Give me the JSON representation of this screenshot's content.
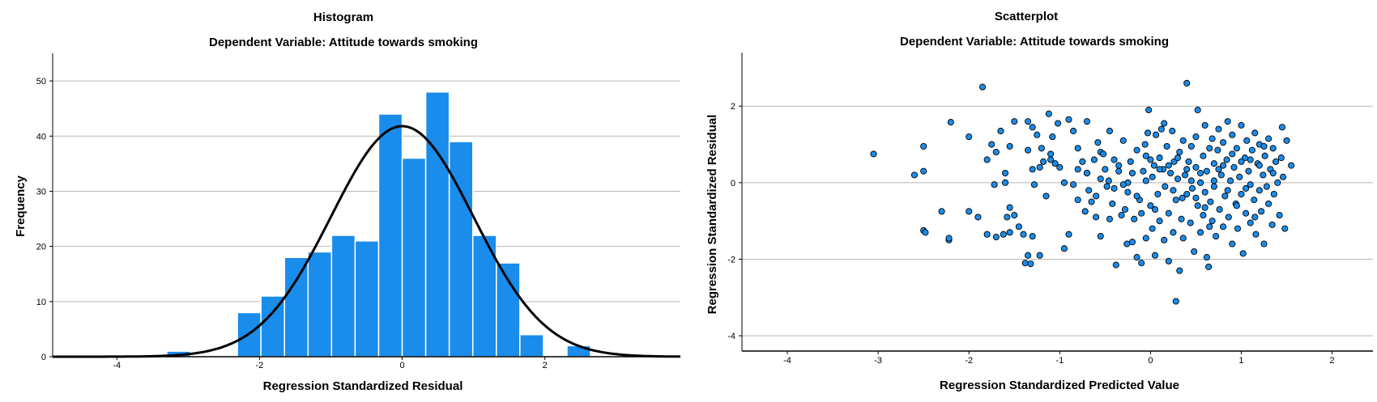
{
  "chart_data": [
    {
      "type": "bar",
      "title": "Histogram",
      "subtitle": "Dependent Variable: Attitude towards smoking",
      "xlabel": "Regression Standardized Residual",
      "ylabel": "Frequency",
      "xlim": [
        -4.9,
        3.9
      ],
      "ylim": [
        0,
        55
      ],
      "x_ticks": [
        "-4",
        "-2",
        "0",
        "2"
      ],
      "y_ticks": [
        "0",
        "10",
        "20",
        "30",
        "40",
        "50"
      ],
      "grid": "horizontal",
      "bar_color": "#1a8ceb",
      "bin_width": 0.33,
      "bins": [
        {
          "start": -3.3,
          "value": 1
        },
        {
          "start": -2.31,
          "value": 8
        },
        {
          "start": -1.98,
          "value": 11
        },
        {
          "start": -1.65,
          "value": 18
        },
        {
          "start": -1.32,
          "value": 19
        },
        {
          "start": -0.99,
          "value": 22
        },
        {
          "start": -0.66,
          "value": 21
        },
        {
          "start": -0.33,
          "value": 44
        },
        {
          "start": 0.0,
          "value": 36
        },
        {
          "start": 0.33,
          "value": 48
        },
        {
          "start": 0.66,
          "value": 39
        },
        {
          "start": 0.99,
          "value": 22
        },
        {
          "start": 1.32,
          "value": 17
        },
        {
          "start": 1.65,
          "value": 4
        },
        {
          "start": 2.31,
          "value": 2
        }
      ],
      "normal_curve": {
        "mean": 0,
        "sd": 1,
        "peak": 41.8,
        "color": "#000000"
      }
    },
    {
      "type": "scatter",
      "title": "Scatterplot",
      "subtitle": "Dependent Variable: Attitude towards smoking",
      "xlabel": "Regression Standardized Predicted Value",
      "ylabel": "Regression Standardized Residual",
      "xlim": [
        -4.5,
        2.45
      ],
      "ylim": [
        -4.4,
        3.4
      ],
      "x_ticks": [
        "-4",
        "-3",
        "-2",
        "-1",
        "0",
        "1",
        "2"
      ],
      "y_ticks": [
        "-4",
        "-2",
        "0",
        "2"
      ],
      "grid": "horizontal",
      "point_color": "#1a8ceb",
      "points": [
        [
          -3.05,
          0.75
        ],
        [
          -2.6,
          0.2
        ],
        [
          -2.5,
          0.95
        ],
        [
          -2.5,
          0.3
        ],
        [
          -2.5,
          -1.25
        ],
        [
          -2.48,
          -1.3
        ],
        [
          -2.3,
          -0.75
        ],
        [
          -2.22,
          -1.5
        ],
        [
          -2.22,
          -1.45
        ],
        [
          -2.2,
          1.58
        ],
        [
          -2.0,
          1.2
        ],
        [
          -2.0,
          -0.75
        ],
        [
          -1.9,
          -0.9
        ],
        [
          -1.85,
          2.5
        ],
        [
          -1.8,
          0.6
        ],
        [
          -1.8,
          -1.35
        ],
        [
          -1.7,
          -1.42
        ],
        [
          -1.75,
          1.0
        ],
        [
          -1.7,
          0.8
        ],
        [
          -1.72,
          -0.05
        ],
        [
          -1.65,
          1.35
        ],
        [
          -1.62,
          -1.35
        ],
        [
          -1.6,
          0.0
        ],
        [
          -1.6,
          0.25
        ],
        [
          -1.58,
          -0.9
        ],
        [
          -1.55,
          0.95
        ],
        [
          -1.55,
          -0.65
        ],
        [
          -1.55,
          -1.3
        ],
        [
          -1.5,
          -0.85
        ],
        [
          -1.5,
          1.6
        ],
        [
          -1.45,
          -1.15
        ],
        [
          -1.4,
          -1.35
        ],
        [
          -1.38,
          -2.1
        ],
        [
          -1.35,
          -1.9
        ],
        [
          -1.32,
          -2.12
        ],
        [
          -1.3,
          -1.4
        ],
        [
          -1.35,
          1.6
        ],
        [
          -1.35,
          0.85
        ],
        [
          -1.3,
          1.45
        ],
        [
          -1.3,
          0.35
        ],
        [
          -1.28,
          -0.05
        ],
        [
          -1.25,
          1.25
        ],
        [
          -1.22,
          -1.9
        ],
        [
          -1.22,
          0.4
        ],
        [
          -1.2,
          0.9
        ],
        [
          -1.18,
          0.55
        ],
        [
          -1.15,
          -0.35
        ],
        [
          -1.12,
          1.8
        ],
        [
          -1.1,
          0.6
        ],
        [
          -1.08,
          1.2
        ],
        [
          -1.05,
          0.5
        ],
        [
          -1.02,
          1.55
        ],
        [
          -1.0,
          0.4
        ],
        [
          -0.95,
          0.0
        ],
        [
          -0.95,
          -1.72
        ],
        [
          -0.9,
          1.65
        ],
        [
          -0.85,
          -0.05
        ],
        [
          -0.85,
          1.35
        ],
        [
          -0.8,
          -0.45
        ],
        [
          -0.8,
          0.9
        ],
        [
          -0.75,
          0.55
        ],
        [
          -0.72,
          -0.75
        ],
        [
          -0.7,
          1.6
        ],
        [
          -0.7,
          0.25
        ],
        [
          -0.68,
          -0.2
        ],
        [
          -0.65,
          -0.5
        ],
        [
          -0.62,
          0.6
        ],
        [
          -0.6,
          -0.35
        ],
        [
          -0.58,
          1.05
        ],
        [
          -0.55,
          0.8
        ],
        [
          -0.55,
          -1.4
        ],
        [
          -0.52,
          0.75
        ],
        [
          -0.5,
          0.35
        ],
        [
          -0.48,
          -0.1
        ],
        [
          -0.46,
          0.05
        ],
        [
          -0.45,
          1.35
        ],
        [
          -0.42,
          -0.55
        ],
        [
          -0.4,
          0.6
        ],
        [
          -0.4,
          -0.15
        ],
        [
          -0.38,
          -2.15
        ],
        [
          -0.35,
          0.3
        ],
        [
          -0.32,
          -0.85
        ],
        [
          -0.3,
          1.1
        ],
        [
          -0.28,
          -0.7
        ],
        [
          -0.26,
          -1.6
        ],
        [
          -0.25,
          -0.25
        ],
        [
          -0.22,
          0.55
        ],
        [
          -0.2,
          -1.55
        ],
        [
          -0.2,
          0.25
        ],
        [
          -0.18,
          -0.95
        ],
        [
          -0.15,
          0.85
        ],
        [
          -0.15,
          -1.95
        ],
        [
          -0.12,
          -0.45
        ],
        [
          -0.1,
          -2.1
        ],
        [
          -0.08,
          0.3
        ],
        [
          -0.06,
          1.0
        ],
        [
          -0.05,
          -1.45
        ],
        [
          -0.05,
          0.7
        ],
        [
          -0.03,
          1.3
        ],
        [
          -0.02,
          1.9
        ],
        [
          0.0,
          -0.6
        ],
        [
          0.02,
          0.15
        ],
        [
          0.02,
          -1.2
        ],
        [
          0.04,
          0.45
        ],
        [
          0.05,
          -1.9
        ],
        [
          0.06,
          1.25
        ],
        [
          0.08,
          -0.3
        ],
        [
          0.1,
          0.65
        ],
        [
          0.1,
          -1.0
        ],
        [
          0.12,
          1.4
        ],
        [
          0.14,
          0.35
        ],
        [
          0.15,
          -1.5
        ],
        [
          0.16,
          -0.1
        ],
        [
          0.18,
          0.95
        ],
        [
          0.2,
          -0.8
        ],
        [
          0.2,
          -2.05
        ],
        [
          0.22,
          0.25
        ],
        [
          0.24,
          1.35
        ],
        [
          0.25,
          -1.3
        ],
        [
          0.26,
          0.55
        ],
        [
          0.28,
          -0.45
        ],
        [
          0.28,
          -3.1
        ],
        [
          0.3,
          0.1
        ],
        [
          0.32,
          -2.3
        ],
        [
          0.32,
          0.8
        ],
        [
          0.34,
          -0.95
        ],
        [
          0.36,
          1.1
        ],
        [
          0.36,
          -1.45
        ],
        [
          0.38,
          0.2
        ],
        [
          0.4,
          -0.3
        ],
        [
          0.4,
          2.6
        ],
        [
          0.42,
          0.55
        ],
        [
          0.44,
          -1.05
        ],
        [
          0.45,
          0.95
        ],
        [
          0.46,
          -0.15
        ],
        [
          0.48,
          -1.8
        ],
        [
          0.5,
          0.4
        ],
        [
          0.5,
          1.2
        ],
        [
          0.52,
          -0.6
        ],
        [
          0.52,
          1.9
        ],
        [
          0.55,
          0.0
        ],
        [
          0.55,
          -1.3
        ],
        [
          0.58,
          0.7
        ],
        [
          0.58,
          -0.85
        ],
        [
          0.6,
          1.5
        ],
        [
          0.6,
          -0.25
        ],
        [
          0.62,
          -1.95
        ],
        [
          0.62,
          0.3
        ],
        [
          0.64,
          -2.2
        ],
        [
          0.65,
          0.9
        ],
        [
          0.66,
          -0.5
        ],
        [
          0.68,
          1.15
        ],
        [
          0.68,
          -1.0
        ],
        [
          0.7,
          0.5
        ],
        [
          0.7,
          -0.1
        ],
        [
          0.72,
          -1.4
        ],
        [
          0.74,
          0.85
        ],
        [
          0.75,
          1.4
        ],
        [
          0.76,
          -0.7
        ],
        [
          0.78,
          0.2
        ],
        [
          0.8,
          -1.15
        ],
        [
          0.8,
          1.05
        ],
        [
          0.82,
          -0.35
        ],
        [
          0.84,
          0.6
        ],
        [
          0.85,
          1.6
        ],
        [
          0.86,
          -0.9
        ],
        [
          0.88,
          0.05
        ],
        [
          0.9,
          -1.6
        ],
        [
          0.9,
          1.25
        ],
        [
          0.92,
          0.4
        ],
        [
          0.94,
          -0.55
        ],
        [
          0.95,
          0.9
        ],
        [
          0.96,
          -1.2
        ],
        [
          0.98,
          0.15
        ],
        [
          1.0,
          1.5
        ],
        [
          1.0,
          -0.3
        ],
        [
          1.02,
          -1.85
        ],
        [
          1.04,
          0.65
        ],
        [
          1.05,
          -0.8
        ],
        [
          1.06,
          1.1
        ],
        [
          1.08,
          0.3
        ],
        [
          1.1,
          -0.05
        ],
        [
          1.1,
          -1.05
        ],
        [
          1.12,
          0.85
        ],
        [
          1.14,
          -0.45
        ],
        [
          1.15,
          1.3
        ],
        [
          1.16,
          -1.35
        ],
        [
          1.18,
          0.5
        ],
        [
          1.2,
          -0.2
        ],
        [
          1.2,
          1.0
        ],
        [
          1.22,
          -0.75
        ],
        [
          1.24,
          0.2
        ],
        [
          1.25,
          -1.6
        ],
        [
          1.26,
          0.7
        ],
        [
          1.28,
          -0.1
        ],
        [
          1.3,
          1.15
        ],
        [
          1.3,
          -0.55
        ],
        [
          1.32,
          0.35
        ],
        [
          1.34,
          -1.1
        ],
        [
          1.35,
          0.9
        ],
        [
          1.36,
          -0.3
        ],
        [
          1.38,
          0.55
        ],
        [
          1.4,
          0.0
        ],
        [
          1.42,
          -0.85
        ],
        [
          1.44,
          0.65
        ],
        [
          1.45,
          1.45
        ],
        [
          1.46,
          0.15
        ],
        [
          1.48,
          -1.2
        ],
        [
          1.5,
          1.1
        ],
        [
          1.55,
          0.45
        ],
        [
          -0.6,
          -0.9
        ],
        [
          -0.9,
          -1.35
        ],
        [
          -1.1,
          0.75
        ],
        [
          -0.25,
          0.0
        ],
        [
          0.05,
          -0.7
        ],
        [
          0.3,
          0.65
        ],
        [
          0.7,
          0.05
        ],
        [
          1.0,
          0.55
        ],
        [
          0.15,
          1.55
        ],
        [
          -0.45,
          -0.95
        ],
        [
          0.85,
          -0.2
        ],
        [
          0.55,
          0.25
        ],
        [
          -0.15,
          -0.35
        ],
        [
          1.2,
          0.45
        ],
        [
          0.6,
          -0.65
        ],
        [
          -0.7,
          0.25
        ],
        [
          0.35,
          -0.4
        ],
        [
          0.95,
          -0.6
        ],
        [
          0.1,
          0.35
        ],
        [
          -0.05,
          0.05
        ],
        [
          0.45,
          0.05
        ],
        [
          0.75,
          0.35
        ],
        [
          1.15,
          -0.9
        ],
        [
          0.25,
          -0.2
        ],
        [
          -0.3,
          -0.05
        ],
        [
          0.65,
          -1.15
        ],
        [
          0.9,
          0.75
        ],
        [
          -0.8,
          0.35
        ],
        [
          1.25,
          0.95
        ],
        [
          0.2,
          0.45
        ],
        [
          -0.55,
          0.1
        ],
        [
          1.05,
          -0.15
        ],
        [
          0.5,
          -0.4
        ],
        [
          -0.35,
          0.45
        ],
        [
          0.8,
          0.45
        ],
        [
          1.35,
          0.25
        ],
        [
          0.0,
          0.6
        ],
        [
          -0.1,
          -0.8
        ],
        [
          0.4,
          0.35
        ],
        [
          1.1,
          0.6
        ]
      ]
    }
  ]
}
